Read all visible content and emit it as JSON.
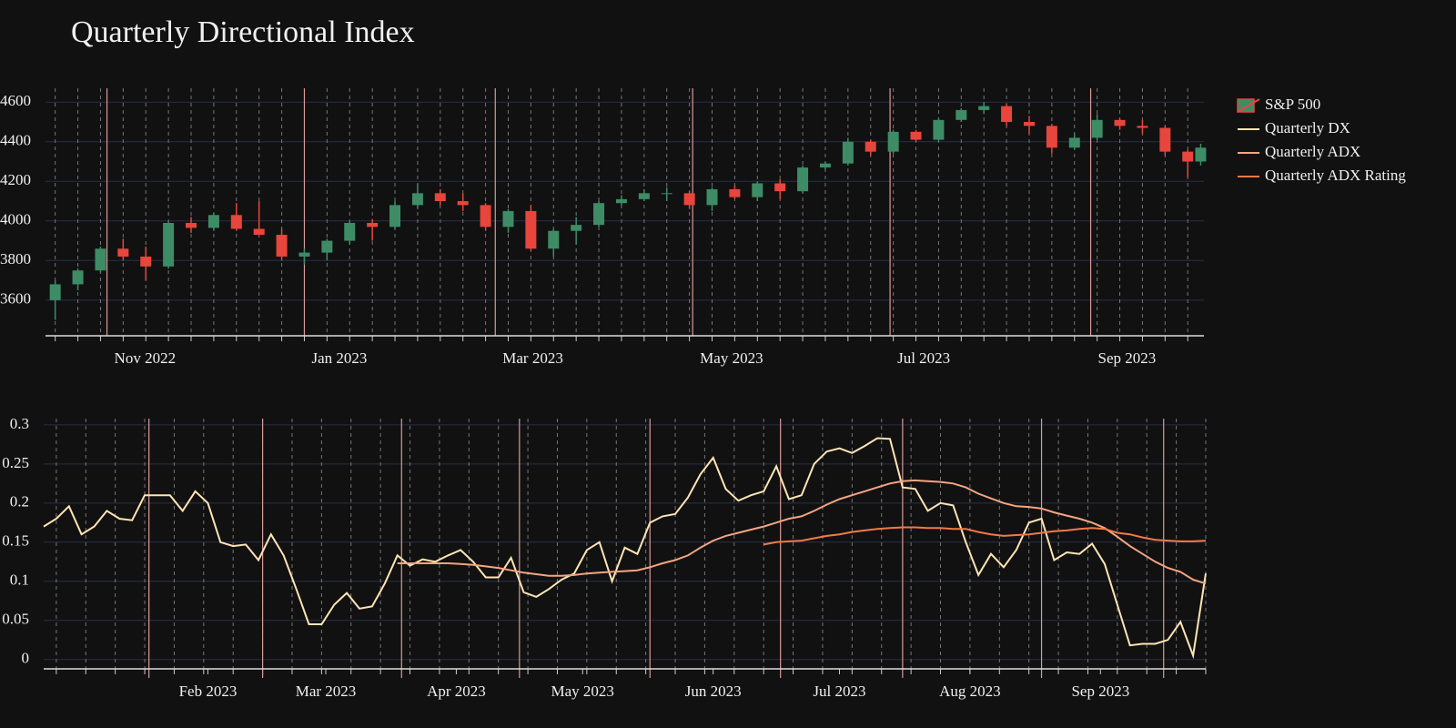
{
  "chart_data": [
    {
      "type": "candlestick",
      "title": "Quarterly Directional Index",
      "name": "S&P 500",
      "up_color": "#3d8c66",
      "down_color": "#e8453c",
      "x": [
        3,
        10,
        17,
        24,
        31,
        38,
        45,
        52,
        59,
        66,
        73,
        80,
        87,
        94,
        101,
        108,
        115,
        122,
        129,
        136,
        143,
        150,
        157,
        164,
        171,
        178,
        185,
        192,
        199,
        206,
        213,
        220,
        227,
        234,
        241,
        248,
        255,
        262,
        269,
        276,
        283,
        290,
        297,
        304,
        311,
        318,
        325,
        332,
        339,
        346,
        353,
        357
      ],
      "open": [
        3600,
        3680,
        3750,
        3860,
        3820,
        3770,
        3990,
        3965,
        4030,
        3960,
        3930,
        3820,
        3840,
        3900,
        3990,
        3970,
        4080,
        4140,
        4100,
        4080,
        3970,
        4050,
        3860,
        3950,
        3980,
        4090,
        4110,
        4140,
        4140,
        4080,
        4160,
        4120,
        4190,
        4150,
        4270,
        4290,
        4400,
        4350,
        4450,
        4410,
        4510,
        4560,
        4580,
        4500,
        4480,
        4370,
        4420,
        4510,
        4480,
        4470,
        4350,
        4300
      ],
      "high": [
        3700,
        3760,
        3870,
        3910,
        3870,
        4000,
        4020,
        4040,
        4090,
        4100,
        3960,
        3860,
        3910,
        4000,
        4010,
        4100,
        4190,
        4160,
        4140,
        4090,
        4060,
        4080,
        3960,
        4020,
        4100,
        4130,
        4160,
        4170,
        4150,
        4170,
        4180,
        4200,
        4210,
        4280,
        4300,
        4420,
        4410,
        4460,
        4460,
        4520,
        4570,
        4600,
        4590,
        4530,
        4490,
        4440,
        4540,
        4520,
        4510,
        4480,
        4360,
        4390
      ],
      "low": [
        3500,
        3650,
        3740,
        3800,
        3700,
        3760,
        3940,
        3950,
        3950,
        3940,
        3800,
        3780,
        3800,
        3880,
        3900,
        3960,
        4060,
        4080,
        4050,
        3950,
        3940,
        3850,
        3820,
        3880,
        3970,
        4080,
        4100,
        4100,
        4060,
        4050,
        4110,
        4100,
        4110,
        4140,
        4260,
        4280,
        4330,
        4340,
        4400,
        4400,
        4500,
        4540,
        4480,
        4440,
        4340,
        4360,
        4410,
        4460,
        4440,
        4330,
        4220,
        4280
      ],
      "close": [
        3680,
        3750,
        3860,
        3820,
        3770,
        3990,
        3965,
        4030,
        3960,
        3930,
        3820,
        3840,
        3900,
        3990,
        3970,
        4080,
        4140,
        4100,
        4080,
        3970,
        4050,
        3860,
        3950,
        3980,
        4090,
        4110,
        4140,
        4140,
        4080,
        4160,
        4120,
        4190,
        4150,
        4270,
        4290,
        4400,
        4350,
        4450,
        4410,
        4510,
        4560,
        4580,
        4500,
        4480,
        4370,
        4420,
        4510,
        4480,
        4470,
        4350,
        4300,
        4370
      ],
      "xlim": [
        0,
        358
      ],
      "xticks": [
        {
          "value": 19,
          "label": "Nov 2022"
        },
        {
          "value": 80,
          "label": "Jan 2023"
        },
        {
          "value": 139,
          "label": "Mar 2023"
        },
        {
          "value": 200,
          "label": "May 2023"
        },
        {
          "value": 261,
          "label": "Jul 2023"
        },
        {
          "value": 323,
          "label": "Sep 2023"
        }
      ],
      "minor_xticks": [
        3,
        10,
        17,
        24,
        31,
        38,
        45,
        52,
        59,
        66,
        73,
        80,
        87,
        94,
        101,
        108,
        115,
        122,
        129,
        136,
        143,
        150,
        157,
        164,
        171,
        178,
        185,
        192,
        199,
        206,
        213,
        220,
        227,
        234,
        241,
        248,
        255,
        262,
        269,
        276,
        283,
        290,
        297,
        304,
        311,
        318,
        325,
        332,
        339,
        346,
        353
      ],
      "ylim": [
        3420,
        4670
      ],
      "yticks": [
        3600,
        3800,
        4000,
        4200,
        4400,
        4600
      ],
      "grid": true
    },
    {
      "type": "line",
      "x": [
        0,
        3,
        6,
        9,
        12,
        15,
        18,
        21,
        24,
        27,
        30,
        33,
        36,
        39,
        42,
        45,
        48,
        51,
        54,
        57,
        60,
        63,
        66,
        69,
        72,
        75,
        78,
        81,
        84,
        87,
        90,
        93,
        96,
        99,
        102,
        105,
        108,
        111,
        114,
        117,
        120,
        123,
        126,
        129,
        132,
        135,
        138,
        141,
        144,
        147,
        150,
        153,
        156,
        159,
        162,
        165,
        168,
        171,
        174,
        177,
        180,
        183,
        186,
        189,
        192,
        195,
        198,
        201,
        204,
        207,
        210,
        213,
        216,
        219,
        222,
        225,
        228,
        231,
        234,
        237,
        240,
        243,
        246,
        249,
        252,
        255,
        258,
        261,
        264,
        267,
        270,
        273,
        276
      ],
      "series": [
        {
          "name": "Quarterly DX",
          "color": "#ffe4b5",
          "values": [
            0.17,
            0.18,
            0.196,
            0.16,
            0.17,
            0.19,
            0.18,
            0.178,
            0.21,
            0.21,
            0.21,
            0.19,
            0.215,
            0.2,
            0.15,
            0.145,
            0.147,
            0.127,
            0.16,
            0.133,
            0.09,
            0.045,
            0.045,
            0.07,
            0.085,
            0.065,
            0.068,
            0.097,
            0.133,
            0.12,
            0.128,
            0.125,
            0.133,
            0.14,
            0.125,
            0.105,
            0.105,
            0.13,
            0.086,
            0.08,
            0.09,
            0.102,
            0.11,
            0.14,
            0.15,
            0.1,
            0.143,
            0.135,
            0.175,
            0.183,
            0.186,
            0.207,
            0.237,
            0.258,
            0.218,
            0.203,
            0.21,
            0.215,
            0.247,
            0.205,
            0.21,
            0.25,
            0.266,
            0.27,
            0.264,
            0.273,
            0.283,
            0.282,
            0.22,
            0.218,
            0.19,
            0.2,
            0.197,
            0.15,
            0.108,
            0.135,
            0.118,
            0.14,
            0.175,
            0.18,
            0.127,
            0.137,
            0.135,
            0.148,
            0.122,
            0.07,
            0.018,
            0.02,
            0.02,
            0.025,
            0.048,
            0.005,
            0.11
          ]
        },
        {
          "name": "Quarterly ADX",
          "color": "#f4a582",
          "values": [
            null,
            null,
            null,
            null,
            null,
            null,
            null,
            null,
            null,
            null,
            null,
            null,
            null,
            null,
            null,
            null,
            null,
            null,
            null,
            null,
            null,
            null,
            null,
            null,
            null,
            null,
            null,
            null,
            0.123,
            0.123,
            0.123,
            0.123,
            0.123,
            0.122,
            0.121,
            0.119,
            0.117,
            0.114,
            0.111,
            0.109,
            0.107,
            0.107,
            0.108,
            0.11,
            0.111,
            0.112,
            0.113,
            0.114,
            0.118,
            0.123,
            0.127,
            0.133,
            0.143,
            0.152,
            0.158,
            0.162,
            0.166,
            0.17,
            0.175,
            0.18,
            0.183,
            0.19,
            0.198,
            0.205,
            0.21,
            0.215,
            0.22,
            0.225,
            0.228,
            0.229,
            0.228,
            0.227,
            0.225,
            0.22,
            0.212,
            0.206,
            0.2,
            0.196,
            0.195,
            0.193,
            0.188,
            0.184,
            0.18,
            0.175,
            0.168,
            0.157,
            0.145,
            0.135,
            0.125,
            0.117,
            0.112,
            0.102,
            0.097
          ]
        },
        {
          "name": "Quarterly ADX Rating",
          "color": "#f07a4a",
          "values": [
            null,
            null,
            null,
            null,
            null,
            null,
            null,
            null,
            null,
            null,
            null,
            null,
            null,
            null,
            null,
            null,
            null,
            null,
            null,
            null,
            null,
            null,
            null,
            null,
            null,
            null,
            null,
            null,
            null,
            null,
            null,
            null,
            null,
            null,
            null,
            null,
            null,
            null,
            null,
            null,
            null,
            null,
            null,
            null,
            null,
            null,
            null,
            null,
            null,
            null,
            null,
            null,
            null,
            null,
            null,
            null,
            null,
            0.147,
            0.15,
            0.151,
            0.152,
            0.155,
            0.158,
            0.16,
            0.163,
            0.165,
            0.167,
            0.168,
            0.169,
            0.169,
            0.168,
            0.168,
            0.167,
            0.167,
            0.163,
            0.16,
            0.158,
            0.159,
            0.16,
            0.162,
            0.164,
            0.165,
            0.167,
            0.168,
            0.167,
            0.162,
            0.16,
            0.156,
            0.153,
            0.152,
            0.151,
            0.151,
            0.152
          ]
        }
      ],
      "xlim": [
        0,
        276
      ],
      "xticks": [
        {
          "value": 39,
          "label": "Feb 2023"
        },
        {
          "value": 67,
          "label": "Mar 2023"
        },
        {
          "value": 98,
          "label": "Apr 2023"
        },
        {
          "value": 128,
          "label": "May 2023"
        },
        {
          "value": 159,
          "label": "Jun 2023"
        },
        {
          "value": 189,
          "label": "Jul 2023"
        },
        {
          "value": 220,
          "label": "Aug 2023"
        },
        {
          "value": 251,
          "label": "Sep 2023"
        }
      ],
      "major_vlines": [
        25,
        52,
        85,
        113,
        144,
        175,
        204,
        237,
        266
      ],
      "minor_xticks": [
        3,
        10,
        17,
        24,
        31,
        38,
        45,
        52,
        59,
        66,
        73,
        80,
        87,
        94,
        101,
        108,
        115,
        122,
        129,
        136,
        143,
        150,
        157,
        164,
        171,
        178,
        185,
        192,
        199,
        206,
        213,
        220,
        227,
        234,
        241,
        248,
        255,
        262,
        269,
        276
      ],
      "ylim": [
        -0.012,
        0.308
      ],
      "yticks": [
        0,
        0.05,
        0.1,
        0.15,
        0.2,
        0.25,
        0.3
      ],
      "grid": true
    }
  ]
}
